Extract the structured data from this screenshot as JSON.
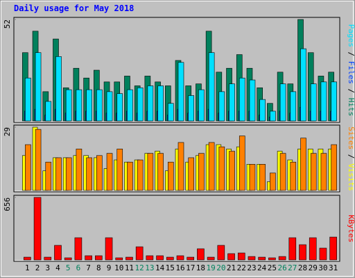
{
  "chart_data": [
    {
      "type": "bar",
      "title": "Daily usage for May 2018",
      "ylim": [
        0,
        52
      ],
      "yticks": [
        52
      ],
      "legend_separator": "/",
      "series": [
        {
          "name": "Hits",
          "color": "#00805c",
          "values": [
            35,
            46,
            15,
            42,
            17,
            27,
            22,
            26,
            20,
            20,
            23,
            18,
            23,
            20,
            18,
            31,
            18,
            19,
            46,
            25,
            27,
            34,
            27,
            17,
            9,
            25,
            19,
            52,
            35,
            23,
            25
          ]
        },
        {
          "name": "Files",
          "color": "#0040ff",
          "values": [
            5,
            6,
            3,
            6,
            4,
            5,
            5,
            5,
            4,
            4,
            5,
            4,
            5,
            5,
            3,
            6,
            4,
            5,
            6,
            4,
            5,
            5,
            5,
            3,
            2,
            5,
            4,
            7,
            5,
            5,
            5
          ]
        },
        {
          "name": "Pages",
          "color": "#00e0ff",
          "values": [
            22,
            35,
            10,
            33,
            16,
            16,
            16,
            16,
            15,
            14,
            16,
            17,
            18,
            18,
            9,
            30,
            13,
            16,
            35,
            15,
            19,
            22,
            21,
            11,
            5,
            19,
            15,
            37,
            19,
            20,
            20
          ]
        }
      ]
    },
    {
      "type": "bar",
      "ylim": [
        0,
        29
      ],
      "yticks": [
        29
      ],
      "legend_separator": "/",
      "series": [
        {
          "name": "Visits",
          "color": "#ffff00",
          "values": [
            16,
            29,
            9,
            15,
            15,
            16,
            16,
            15,
            10,
            14,
            13,
            14,
            17,
            18,
            9,
            19,
            13,
            16,
            21,
            21,
            19,
            20,
            12,
            12,
            4,
            18,
            14,
            19,
            19,
            19,
            19
          ]
        },
        {
          "name": "Sites",
          "color": "#ff8000",
          "values": [
            21,
            28,
            13,
            15,
            15,
            19,
            15,
            16,
            17,
            19,
            13,
            14,
            17,
            17,
            13,
            22,
            15,
            17,
            22,
            20,
            18,
            25,
            12,
            12,
            8,
            17,
            13,
            24,
            17,
            17,
            21
          ]
        }
      ]
    },
    {
      "type": "bar",
      "ylim": [
        0,
        656
      ],
      "yticks": [
        656
      ],
      "categories": [
        "1",
        "2",
        "3",
        "4",
        "5",
        "6",
        "7",
        "8",
        "9",
        "10",
        "11",
        "12",
        "13",
        "14",
        "15",
        "16",
        "17",
        "18",
        "19",
        "20",
        "21",
        "22",
        "23",
        "24",
        "25",
        "26",
        "27",
        "28",
        "29",
        "30",
        "31"
      ],
      "weekend_indices": [
        4,
        5,
        11,
        12,
        18,
        19,
        25,
        26
      ],
      "weekend_color": "#00805c",
      "series": [
        {
          "name": "KBytes",
          "color": "#ff0000",
          "values": [
            29,
            656,
            29,
            153,
            22,
            233,
            44,
            44,
            233,
            22,
            29,
            138,
            44,
            44,
            29,
            44,
            29,
            117,
            29,
            153,
            66,
            73,
            36,
            29,
            22,
            36,
            233,
            160,
            233,
            124,
            240
          ]
        }
      ]
    }
  ]
}
